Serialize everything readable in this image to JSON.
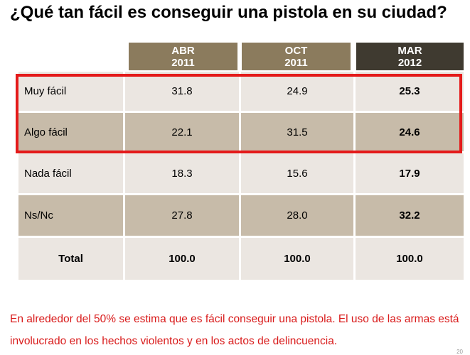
{
  "title": "¿Qué tan fácil es conseguir una pistola en su ciudad?",
  "table": {
    "headers": [
      {
        "line1": "ABR",
        "line2": "2011"
      },
      {
        "line1": "OCT",
        "line2": "2011"
      },
      {
        "line1": "MAR",
        "line2": "2012"
      }
    ],
    "rows": [
      {
        "label": "Muy fácil",
        "values": [
          "31.8",
          "24.9",
          "25.3"
        ]
      },
      {
        "label": "Algo fácil",
        "values": [
          "22.1",
          "31.5",
          "24.6"
        ]
      },
      {
        "label": "Nada fácil",
        "values": [
          "18.3",
          "15.6",
          "17.9"
        ]
      },
      {
        "label": "Ns/Nc",
        "values": [
          "27.8",
          "28.0",
          "32.2"
        ]
      },
      {
        "label": "Total",
        "values": [
          "100.0",
          "100.0",
          "100.0"
        ]
      }
    ]
  },
  "note": "En alrededor del 50% se estima que es fácil conseguir una pistola. El uso de las armas está involucrado en los hechos violentos y en los actos de delincuencia.",
  "page_number": "20",
  "colors": {
    "header_accent": "#8b7b5d",
    "header_latest": "#3f3a30",
    "row_light": "#ebe6e1",
    "row_dark": "#c7bba9",
    "highlight_border": "#e41a1a",
    "note_text": "#d91b1b"
  }
}
